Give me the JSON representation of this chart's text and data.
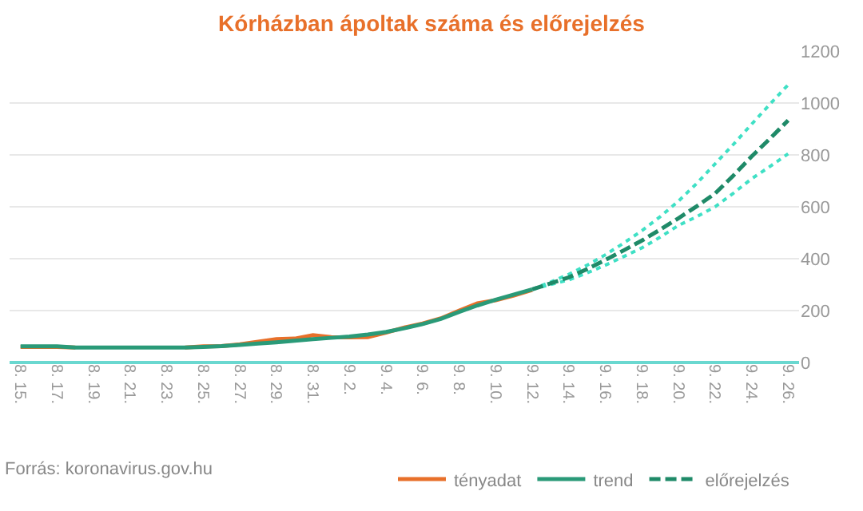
{
  "chart_data": {
    "type": "line",
    "title": "Kórházban ápoltak száma és előrejelzés",
    "categories": [
      "8. 15.",
      null,
      "8. 17.",
      null,
      "8. 19.",
      null,
      "8. 21.",
      null,
      "8. 23.",
      null,
      "8. 25.",
      null,
      "8. 27.",
      null,
      "8. 29.",
      null,
      "8. 31.",
      null,
      "9. 2.",
      null,
      "9. 4.",
      null,
      "9. 6.",
      null,
      "9. 8.",
      null,
      "9. 10.",
      null,
      "9. 12.",
      null,
      "9. 14.",
      null,
      "9. 16.",
      null,
      "9. 18.",
      null,
      "9. 20.",
      null,
      "9. 22.",
      null,
      "9. 24.",
      null,
      "9. 26."
    ],
    "series": [
      {
        "name": "tényadat",
        "color": "#e8702a",
        "line_style": "solid",
        "values": [
          60,
          60,
          60,
          58,
          null,
          null,
          null,
          null,
          null,
          58,
          62,
          63,
          70,
          80,
          90,
          92,
          105,
          98,
          97,
          98,
          115,
          135,
          150,
          170,
          200,
          228,
          240,
          258,
          280,
          null,
          null,
          null,
          null,
          null,
          null,
          null,
          null,
          null,
          null,
          null,
          null,
          null,
          null
        ]
      },
      {
        "name": "trend",
        "color": "#2a9a78",
        "line_style": "solid",
        "values": [
          62,
          62,
          62,
          58,
          58,
          58,
          58,
          58,
          58,
          58,
          60,
          63,
          68,
          73,
          78,
          84,
          90,
          95,
          100,
          108,
          118,
          132,
          148,
          168,
          195,
          220,
          242,
          262,
          282,
          null,
          null,
          null,
          null,
          null,
          null,
          null,
          null,
          null,
          null,
          null,
          null,
          null,
          null
        ]
      },
      {
        "color": "#3fe0c5",
        "line_style": "dotted",
        "values": [
          null,
          null,
          null,
          null,
          null,
          null,
          null,
          null,
          null,
          null,
          null,
          null,
          null,
          null,
          null,
          null,
          null,
          null,
          null,
          null,
          null,
          null,
          null,
          null,
          null,
          null,
          null,
          null,
          282,
          300,
          318,
          345,
          375,
          408,
          442,
          483,
          528,
          562,
          600,
          652,
          708,
          755,
          804
        ]
      },
      {
        "color": "#3fe0c5",
        "line_style": "dotted",
        "values": [
          null,
          null,
          null,
          null,
          null,
          null,
          null,
          null,
          null,
          null,
          null,
          null,
          null,
          null,
          null,
          null,
          null,
          null,
          null,
          null,
          null,
          null,
          null,
          null,
          null,
          null,
          null,
          null,
          282,
          310,
          340,
          375,
          415,
          460,
          508,
          562,
          622,
          690,
          765,
          840,
          918,
          995,
          1070
        ]
      },
      {
        "name": "előrejelzés",
        "color": "#1f8a68",
        "line_style": "dashed",
        "values": [
          null,
          null,
          null,
          null,
          null,
          null,
          null,
          null,
          null,
          null,
          null,
          null,
          null,
          null,
          null,
          null,
          null,
          null,
          null,
          null,
          null,
          null,
          null,
          null,
          null,
          null,
          null,
          null,
          282,
          305,
          328,
          360,
          395,
          432,
          470,
          512,
          556,
          602,
          651,
          720,
          794,
          862,
          933
        ]
      }
    ],
    "ylim": [
      0,
      1200
    ],
    "yticks": [
      0,
      200,
      400,
      600,
      800,
      1000,
      1200
    ],
    "grid": "y",
    "legend": "bottom right",
    "marker": "none",
    "annotations": [
      "Forrás: koronavirus.gov.hu"
    ]
  }
}
